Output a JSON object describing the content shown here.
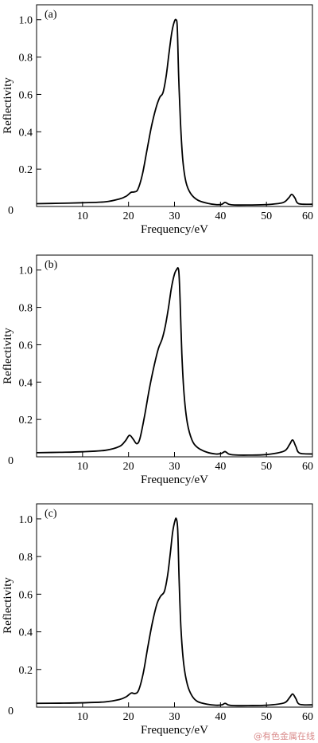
{
  "watermark": "@有色金属在线",
  "chart_data": [
    {
      "type": "line",
      "panel": "(a)",
      "xlabel": "Frequency/eV",
      "ylabel": "Reflectivity",
      "xlim": [
        0,
        60
      ],
      "ylim": [
        0,
        1.08
      ],
      "xticks": [
        0,
        10,
        20,
        30,
        40,
        50,
        60
      ],
      "yticks": [
        0,
        0.2,
        0.4,
        0.6,
        0.8,
        1.0
      ],
      "xtick_labels": [
        "0",
        "10",
        "20",
        "30",
        "40",
        "50",
        "60"
      ],
      "ytick_labels": [
        "0",
        "0.2",
        "0.4",
        "0.6",
        "0.8",
        "1.0"
      ],
      "grid": false,
      "series": [
        {
          "x": [
            0,
            5,
            10,
            15,
            18,
            19.5,
            20.5,
            21.2,
            22,
            23,
            24,
            25,
            26,
            26.8,
            27.5,
            28.2,
            28.8,
            29.4,
            29.9,
            30.3,
            30.6,
            30.9,
            31.3,
            31.8,
            32.5,
            33.5,
            35,
            37,
            39,
            40.3,
            41,
            41.8,
            43,
            46,
            50,
            53.5,
            54.8,
            55.5,
            56.2,
            57,
            60
          ],
          "y": [
            0.015,
            0.017,
            0.02,
            0.025,
            0.04,
            0.055,
            0.075,
            0.078,
            0.09,
            0.17,
            0.3,
            0.43,
            0.53,
            0.585,
            0.61,
            0.7,
            0.82,
            0.93,
            0.985,
            1.0,
            0.96,
            0.7,
            0.45,
            0.25,
            0.13,
            0.07,
            0.035,
            0.018,
            0.01,
            0.012,
            0.022,
            0.012,
            0.008,
            0.008,
            0.01,
            0.02,
            0.045,
            0.065,
            0.045,
            0.015,
            0.012
          ]
        }
      ]
    },
    {
      "type": "line",
      "panel": "(b)",
      "xlabel": "Frequency/eV",
      "ylabel": "Reflectivity",
      "xlim": [
        0,
        60
      ],
      "ylim": [
        0,
        1.08
      ],
      "xticks": [
        0,
        10,
        20,
        30,
        40,
        50,
        60
      ],
      "yticks": [
        0,
        0.2,
        0.4,
        0.6,
        0.8,
        1.0
      ],
      "xtick_labels": [
        "0",
        "10",
        "20",
        "30",
        "40",
        "50",
        "60"
      ],
      "ytick_labels": [
        "0",
        "0.2",
        "0.4",
        "0.6",
        "0.8",
        "1.0"
      ],
      "grid": false,
      "series": [
        {
          "x": [
            0,
            5,
            10,
            15,
            18,
            19.3,
            20.2,
            21,
            21.8,
            22.5,
            23.5,
            24.5,
            25.5,
            26.5,
            27.3,
            28,
            28.7,
            29.3,
            29.9,
            30.4,
            30.9,
            31.2,
            31.6,
            32.1,
            32.8,
            33.8,
            35,
            37,
            39,
            40.2,
            41,
            41.8,
            43,
            46,
            50,
            53.8,
            55,
            55.7,
            56.4,
            57.2,
            60
          ],
          "y": [
            0.022,
            0.024,
            0.027,
            0.035,
            0.055,
            0.085,
            0.115,
            0.095,
            0.07,
            0.1,
            0.22,
            0.36,
            0.48,
            0.58,
            0.63,
            0.7,
            0.8,
            0.9,
            0.97,
            1.0,
            1.0,
            0.85,
            0.55,
            0.33,
            0.18,
            0.09,
            0.05,
            0.025,
            0.015,
            0.018,
            0.028,
            0.015,
            0.01,
            0.009,
            0.012,
            0.03,
            0.065,
            0.09,
            0.055,
            0.02,
            0.015
          ]
        }
      ]
    },
    {
      "type": "line",
      "panel": "(c)",
      "xlabel": "Frequency/eV",
      "ylabel": "Reflectivity",
      "xlim": [
        0,
        60
      ],
      "ylim": [
        0,
        1.08
      ],
      "xticks": [
        0,
        10,
        20,
        30,
        40,
        50,
        60
      ],
      "yticks": [
        0,
        0.2,
        0.4,
        0.6,
        0.8,
        1.0
      ],
      "xtick_labels": [
        "0",
        "10",
        "20",
        "30",
        "40",
        "50",
        "60"
      ],
      "ytick_labels": [
        "0",
        "0.2",
        "0.4",
        "0.6",
        "0.8",
        "1.0"
      ],
      "grid": false,
      "series": [
        {
          "x": [
            0,
            5,
            10,
            15,
            18,
            19.5,
            20.6,
            21.4,
            22.2,
            23.2,
            24.2,
            25.2,
            26.2,
            27,
            27.8,
            28.5,
            29.1,
            29.6,
            30.1,
            30.4,
            30.7,
            31,
            31.4,
            32,
            32.8,
            33.8,
            35,
            37,
            39,
            40.3,
            41,
            41.8,
            43,
            46,
            50,
            53.8,
            55,
            55.7,
            56.4,
            57.2,
            60
          ],
          "y": [
            0.02,
            0.021,
            0.023,
            0.028,
            0.04,
            0.055,
            0.075,
            0.072,
            0.09,
            0.18,
            0.32,
            0.45,
            0.55,
            0.59,
            0.615,
            0.7,
            0.82,
            0.93,
            0.99,
            1.0,
            0.94,
            0.68,
            0.42,
            0.23,
            0.12,
            0.06,
            0.03,
            0.016,
            0.01,
            0.012,
            0.02,
            0.011,
            0.008,
            0.008,
            0.01,
            0.022,
            0.05,
            0.07,
            0.045,
            0.015,
            0.012
          ]
        }
      ]
    }
  ]
}
